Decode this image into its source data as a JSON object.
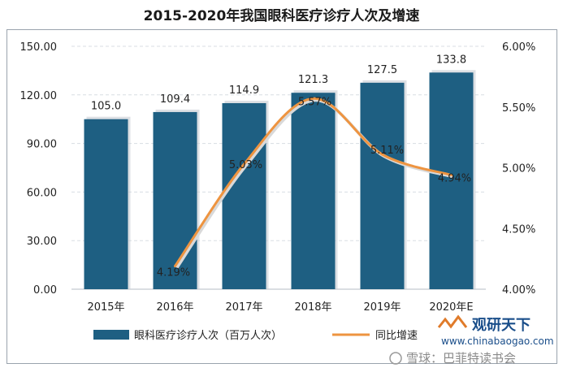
{
  "header": {
    "title": "2015-2020年我国眼科医疗诊疗人次及增速"
  },
  "chart_data": {
    "type": "bar+line",
    "title": "2015-2020年我国眼科医疗诊疗人次及增速",
    "categories": [
      "2015年",
      "2016年",
      "2017年",
      "2018年",
      "2019年",
      "2020年E"
    ],
    "series": [
      {
        "name": "眼科医疗诊疗人次（百万人次）",
        "type": "bar",
        "axis": "left",
        "values": [
          105.0,
          109.4,
          114.9,
          121.3,
          127.5,
          133.8
        ],
        "labels": [
          "105.0",
          "109.4",
          "114.9",
          "121.3",
          "127.5",
          "133.8"
        ]
      },
      {
        "name": "同比增速",
        "type": "line",
        "axis": "right",
        "values": [
          null,
          4.19,
          5.03,
          5.57,
          5.11,
          4.94
        ],
        "labels": [
          "",
          "4.19%",
          "5.03%",
          "5.57%",
          "5.11%",
          "4.94%"
        ]
      }
    ],
    "y_left": {
      "min": 0,
      "max": 150,
      "ticks": [
        "0.00",
        "30.00",
        "60.00",
        "90.00",
        "120.00",
        "150.00"
      ]
    },
    "y_right": {
      "min": 4.0,
      "max": 6.0,
      "ticks": [
        "4.00%",
        "4.50%",
        "5.00%",
        "5.50%",
        "6.00%"
      ]
    },
    "grid": "horizontal-dashed",
    "legend_position": "bottom-left"
  },
  "colors": {
    "bar": "#1e5f82",
    "line": "#ee9440",
    "grid": "#d8dde3",
    "axis_text": "#222222"
  },
  "watermark": {
    "brand": "观研天下",
    "site": "www.chinabaogao.com",
    "credit": "雪球：巴菲特读书会"
  }
}
